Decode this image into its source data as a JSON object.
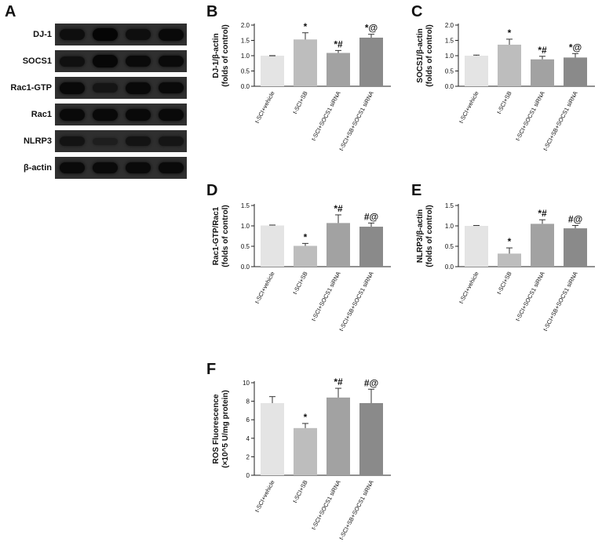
{
  "figure": {
    "panels": {
      "A": "A",
      "B": "B",
      "C": "C",
      "D": "D",
      "E": "E",
      "F": "F"
    }
  },
  "blots": {
    "lanes": 4,
    "rows": [
      {
        "label": "DJ-1",
        "intensity": [
          0.75,
          1.0,
          0.75,
          0.9
        ]
      },
      {
        "label": "SOCS1",
        "intensity": [
          0.7,
          0.95,
          0.85,
          0.85
        ]
      },
      {
        "label": "Rac1-GTP",
        "intensity": [
          0.9,
          0.55,
          0.9,
          0.85
        ]
      },
      {
        "label": "Rac1",
        "intensity": [
          0.9,
          0.9,
          0.9,
          0.9
        ]
      },
      {
        "label": "NLRP3",
        "intensity": [
          0.6,
          0.3,
          0.6,
          0.55
        ]
      },
      {
        "label": "β-actin",
        "intensity": [
          0.85,
          0.85,
          0.85,
          0.85
        ]
      }
    ]
  },
  "chart_data": [
    {
      "panel": "B",
      "type": "bar",
      "ylabel": [
        "DJ-1/β-actin",
        "(folds of control)"
      ],
      "ylim": [
        0,
        2.0
      ],
      "yticks": [
        "0.0",
        "0.5",
        "1.0",
        "1.5",
        "2.0"
      ],
      "categories": [
        "t-SCI+vehicle",
        "t-SCI+SB",
        "t-SCI+SOCS1 siRNA",
        "t-SCI+SB+SOCS1 siRNA"
      ],
      "values": [
        1.0,
        1.53,
        1.09,
        1.59
      ],
      "errors": [
        0.0,
        0.22,
        0.08,
        0.11
      ],
      "annotations": [
        "",
        "*",
        "*#",
        "*@"
      ]
    },
    {
      "panel": "C",
      "type": "bar",
      "ylabel": [
        "SOCS1/β-actin",
        "(folds of control)"
      ],
      "ylim": [
        0,
        2.0
      ],
      "yticks": [
        "0.0",
        "0.5",
        "1.0",
        "1.5",
        "2.0"
      ],
      "categories": [
        "t-SCI+vehicle",
        "t-SCI+SB",
        "t-SCI+SOCS1 siRNA",
        "t-SCI+SB+SOCS1 siRNA"
      ],
      "values": [
        1.0,
        1.36,
        0.88,
        0.94
      ],
      "errors": [
        0.02,
        0.18,
        0.1,
        0.13
      ],
      "annotations": [
        "",
        "*",
        "*#",
        "*@"
      ]
    },
    {
      "panel": "D",
      "type": "bar",
      "ylabel": [
        "Rac1-GTP/Rac1",
        "(folds of control)"
      ],
      "ylim": [
        0,
        1.5
      ],
      "yticks": [
        "0.0",
        "0.5",
        "1.0",
        "1.5"
      ],
      "categories": [
        "t-SCI+vehicle",
        "t-SCI+SB",
        "t-SCI+SOCS1 siRNA",
        "t-SCI+SB+SOCS1 siRNA"
      ],
      "values": [
        1.01,
        0.51,
        1.07,
        0.98
      ],
      "errors": [
        0.01,
        0.06,
        0.2,
        0.09
      ],
      "annotations": [
        "",
        "*",
        "*#",
        "#@"
      ]
    },
    {
      "panel": "E",
      "type": "bar",
      "ylabel": [
        "NLRP3/β-actin",
        "(folds of control)"
      ],
      "ylim": [
        0,
        1.5
      ],
      "yticks": [
        "0.0",
        "0.5",
        "1.0",
        "1.5"
      ],
      "categories": [
        "t-SCI+vehicle",
        "t-SCI+SB",
        "t-SCI+SOCS1 siRNA",
        "t-SCI+SB+SOCS1 siRNA"
      ],
      "values": [
        1.0,
        0.32,
        1.05,
        0.94
      ],
      "errors": [
        0.01,
        0.14,
        0.1,
        0.07
      ],
      "annotations": [
        "",
        "*",
        "*#",
        "#@"
      ]
    },
    {
      "panel": "F",
      "type": "bar",
      "ylabel": [
        "ROS Fluorescence",
        "(×10^5 U/mg protein)"
      ],
      "ylim": [
        0,
        10
      ],
      "yticks": [
        "0",
        "2",
        "4",
        "6",
        "8",
        "10"
      ],
      "categories": [
        "t-SCI+vehicle",
        "t-SCI+SB",
        "t-SCI+SOCS1 siRNA",
        "t-SCI+SB+SOCS1 siRNA"
      ],
      "values": [
        7.8,
        5.1,
        8.4,
        7.8
      ],
      "errors": [
        0.7,
        0.5,
        1.0,
        1.5
      ],
      "annotations": [
        "",
        "*",
        "*#",
        "#@"
      ]
    }
  ],
  "colors": {
    "bars": [
      "#e4e4e4",
      "#bdbdbd",
      "#a2a2a2",
      "#8a8a8a"
    ],
    "axis": "#222222"
  }
}
